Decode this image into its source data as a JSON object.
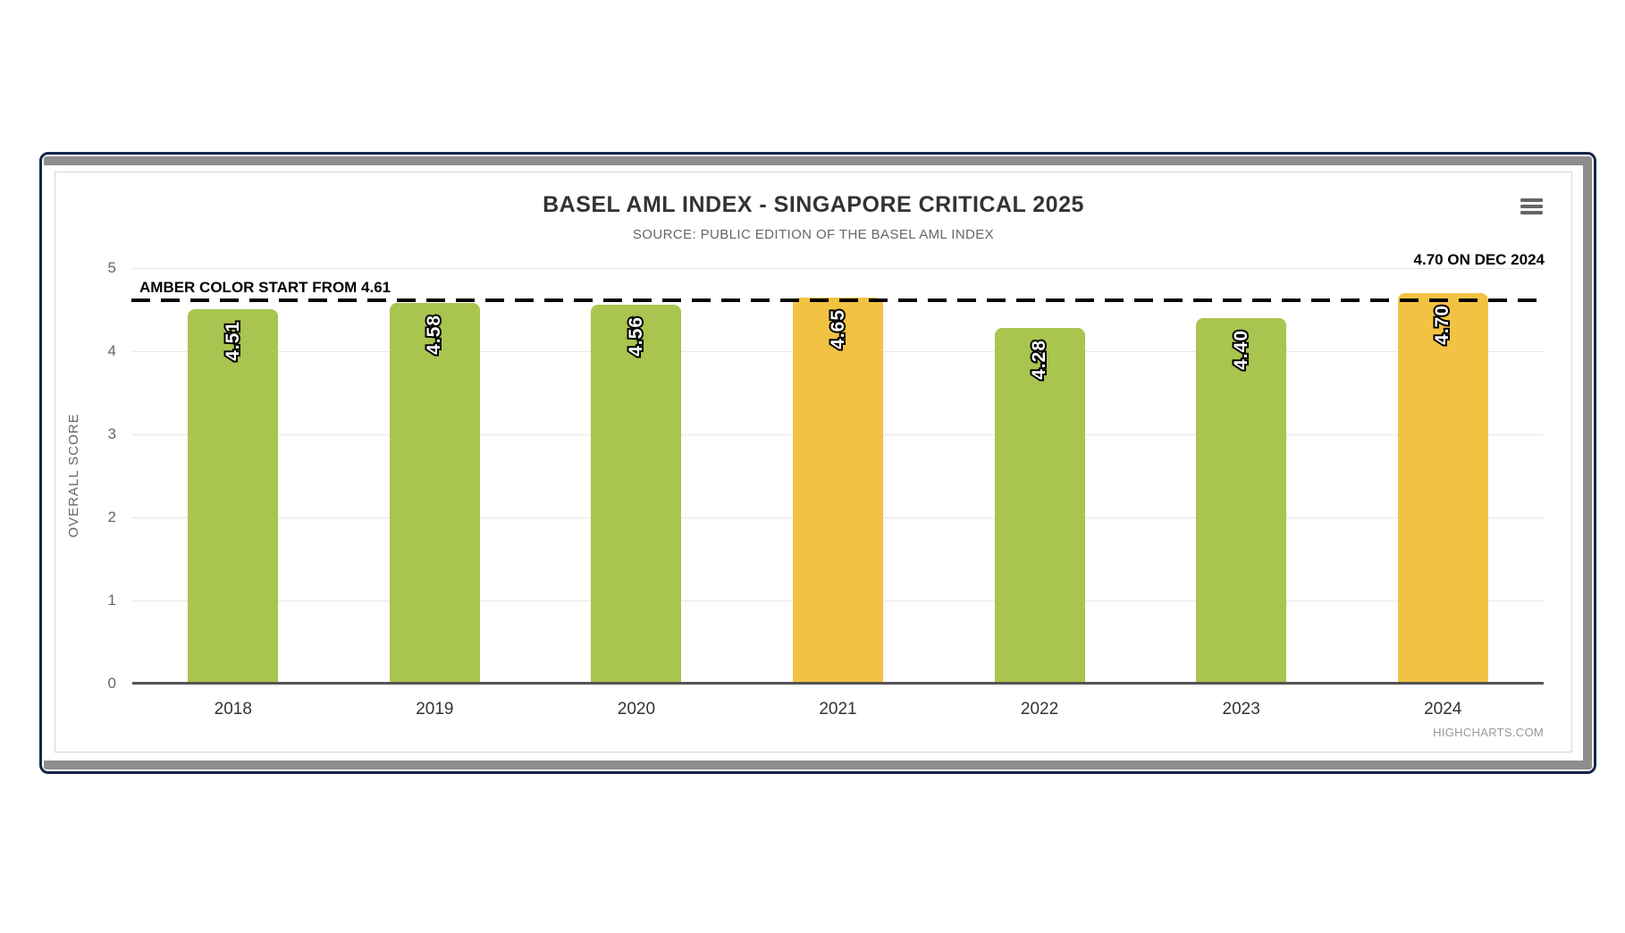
{
  "chart_data": {
    "type": "bar",
    "title": "BASEL AML INDEX - SINGAPORE CRITICAL 2025",
    "subtitle": "SOURCE: PUBLIC EDITION OF THE BASEL AML INDEX",
    "categories": [
      "2018",
      "2019",
      "2020",
      "2021",
      "2022",
      "2023",
      "2024"
    ],
    "values": [
      4.51,
      4.58,
      4.56,
      4.65,
      4.28,
      4.4,
      4.7
    ],
    "value_labels": [
      "4.51",
      "4.58",
      "4.56",
      "4.65",
      "4.28",
      "4.40",
      "4.70"
    ],
    "bar_color_names": [
      "green",
      "green",
      "green",
      "amber",
      "green",
      "green",
      "amber"
    ],
    "colors": {
      "green": "#a9c44f",
      "amber": "#f2c243"
    },
    "xlabel": "",
    "ylabel": "OVERALL SCORE",
    "ylim": [
      0,
      5
    ],
    "yticks": [
      "0",
      "1",
      "2",
      "3",
      "4",
      "5"
    ],
    "grid": "horizontal",
    "legend": "none",
    "threshold": {
      "value": 4.61,
      "label": "AMBER COLOR START FROM 4.61",
      "line_style": "dashed",
      "color": "#000000"
    },
    "annotation": "4.70 ON DEC 2024",
    "credit": "HIGHCHARTS.COM"
  },
  "frame_colors": {
    "border_navy": "#16264a",
    "shadow_gray": "#8d8d8d",
    "grid_gray": "#e6e6e6",
    "axis_gray": "#545454"
  },
  "menu": {
    "icon": "hamburger-menu-icon"
  }
}
